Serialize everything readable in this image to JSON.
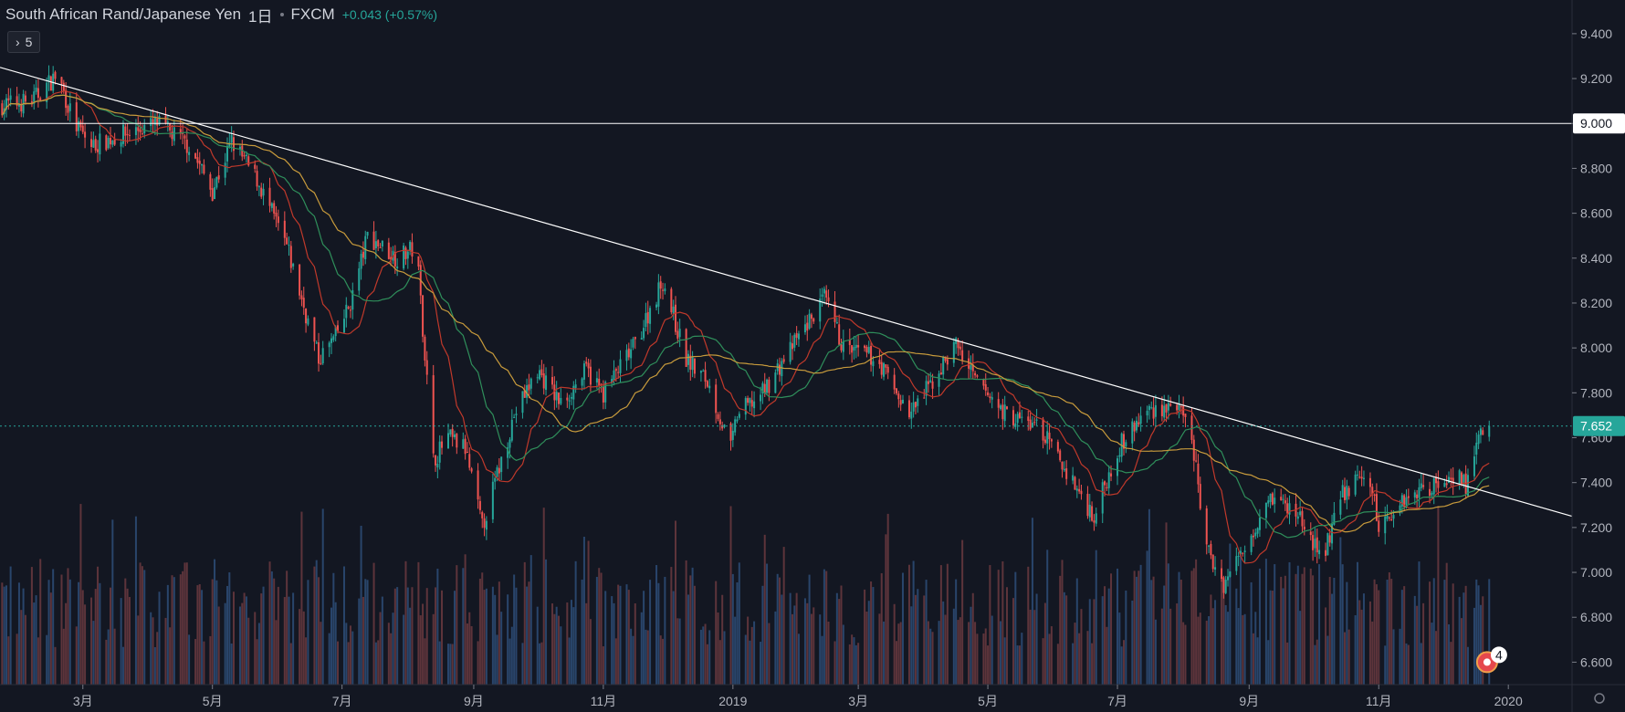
{
  "header": {
    "symbol": "South African Rand/Japanese Yen",
    "interval": "1日",
    "exchange": "FXCM",
    "change": "+0.043 (+0.57%)"
  },
  "indicators_toggle": {
    "label": "5"
  },
  "markers": {
    "count": "4"
  },
  "colors": {
    "background": "#131722",
    "up": "#26a69a",
    "down": "#ef5350",
    "volume_up": "#2e4d78",
    "volume_down": "#6b3a3f",
    "ma_fast": "#c0392b",
    "ma_mid": "#2f8f5b",
    "ma_slow": "#c89b3c",
    "line": "#ffffff",
    "last_price_tag": "#26a69a"
  },
  "chart_data": {
    "type": "candlestick",
    "title": "South African Rand/Japanese Yen",
    "x_start": "2018-01-21",
    "x_end": "2020-01-31",
    "y_range": [
      6.5,
      9.55
    ],
    "y_ticks": [
      "9.400",
      "9.200",
      "9.000",
      "8.800",
      "8.600",
      "8.400",
      "8.200",
      "8.000",
      "7.800",
      "7.600",
      "7.400",
      "7.200",
      "7.000",
      "6.800",
      "6.600"
    ],
    "x_ticks": [
      {
        "date": "2018-03-01",
        "label": "3月"
      },
      {
        "date": "2018-05-01",
        "label": "5月"
      },
      {
        "date": "2018-07-01",
        "label": "7月"
      },
      {
        "date": "2018-09-01",
        "label": "9月"
      },
      {
        "date": "2018-11-01",
        "label": "11月"
      },
      {
        "date": "2019-01-01",
        "label": "2019"
      },
      {
        "date": "2019-03-01",
        "label": "3月"
      },
      {
        "date": "2019-05-01",
        "label": "5月"
      },
      {
        "date": "2019-07-01",
        "label": "7月"
      },
      {
        "date": "2019-09-01",
        "label": "9月"
      },
      {
        "date": "2019-11-01",
        "label": "11月"
      },
      {
        "date": "2020-01-01",
        "label": "2020"
      }
    ],
    "close_path": [
      [
        "2018-01-21",
        9.08
      ],
      [
        "2018-02-05",
        9.1
      ],
      [
        "2018-02-17",
        9.22
      ],
      [
        "2018-02-25",
        9.0
      ],
      [
        "2018-03-05",
        8.9
      ],
      [
        "2018-03-20",
        8.95
      ],
      [
        "2018-04-05",
        9.0
      ],
      [
        "2018-04-20",
        8.9
      ],
      [
        "2018-05-01",
        8.7
      ],
      [
        "2018-05-10",
        8.92
      ],
      [
        "2018-05-22",
        8.75
      ],
      [
        "2018-06-05",
        8.45
      ],
      [
        "2018-06-20",
        7.95
      ],
      [
        "2018-06-28",
        8.05
      ],
      [
        "2018-07-05",
        8.2
      ],
      [
        "2018-07-13",
        8.5
      ],
      [
        "2018-07-27",
        8.4
      ],
      [
        "2018-08-05",
        8.45
      ],
      [
        "2018-08-13",
        7.5
      ],
      [
        "2018-08-20",
        7.6
      ],
      [
        "2018-08-28",
        7.55
      ],
      [
        "2018-09-05",
        7.2
      ],
      [
        "2018-09-20",
        7.7
      ],
      [
        "2018-10-01",
        7.9
      ],
      [
        "2018-10-12",
        7.75
      ],
      [
        "2018-10-24",
        7.9
      ],
      [
        "2018-11-01",
        7.8
      ],
      [
        "2018-11-15",
        8.0
      ],
      [
        "2018-11-29",
        8.3
      ],
      [
        "2018-12-10",
        7.95
      ],
      [
        "2018-12-20",
        7.85
      ],
      [
        "2018-12-31",
        7.55
      ],
      [
        "2019-01-03",
        7.7
      ],
      [
        "2019-01-15",
        7.8
      ],
      [
        "2019-02-01",
        8.05
      ],
      [
        "2019-02-13",
        8.22
      ],
      [
        "2019-02-22",
        8.0
      ],
      [
        "2019-03-10",
        7.95
      ],
      [
        "2019-03-25",
        7.7
      ],
      [
        "2019-04-05",
        7.85
      ],
      [
        "2019-04-16",
        8.02
      ],
      [
        "2019-04-25",
        7.85
      ],
      [
        "2019-05-10",
        7.7
      ],
      [
        "2019-05-25",
        7.65
      ],
      [
        "2019-06-10",
        7.4
      ],
      [
        "2019-06-20",
        7.25
      ],
      [
        "2019-07-01",
        7.55
      ],
      [
        "2019-07-15",
        7.72
      ],
      [
        "2019-07-28",
        7.75
      ],
      [
        "2019-08-05",
        7.6
      ],
      [
        "2019-08-12",
        7.1
      ],
      [
        "2019-08-20",
        6.95
      ],
      [
        "2019-09-01",
        7.15
      ],
      [
        "2019-09-10",
        7.35
      ],
      [
        "2019-09-25",
        7.25
      ],
      [
        "2019-10-05",
        7.05
      ],
      [
        "2019-10-15",
        7.35
      ],
      [
        "2019-10-27",
        7.45
      ],
      [
        "2019-11-01",
        7.2
      ],
      [
        "2019-11-15",
        7.35
      ],
      [
        "2019-11-30",
        7.4
      ],
      [
        "2019-12-08",
        7.45
      ],
      [
        "2019-12-12",
        7.38
      ],
      [
        "2019-12-18",
        7.6
      ],
      [
        "2019-12-23",
        7.652
      ]
    ],
    "last_price": "7.652",
    "horizontal_level": "9.000",
    "trendline": [
      [
        "2018-01-21",
        9.25
      ],
      [
        "2020-01-31",
        7.25
      ]
    ],
    "volume_y_range": [
      0,
      4.5
    ]
  }
}
